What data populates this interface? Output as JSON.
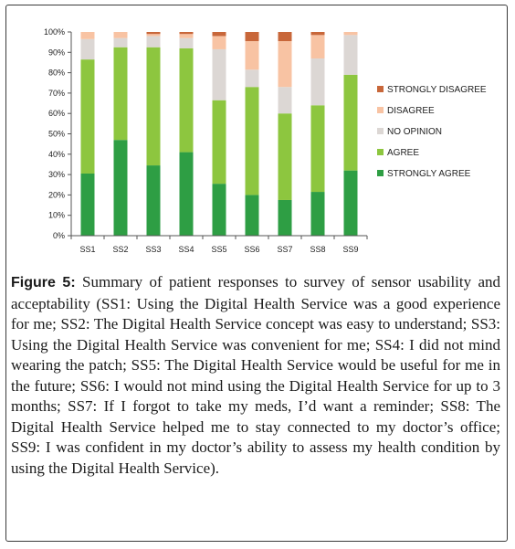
{
  "chart_data": {
    "type": "bar",
    "stacked": true,
    "percent": true,
    "categories": [
      "SS1",
      "SS2",
      "SS3",
      "SS4",
      "SS5",
      "SS6",
      "SS7",
      "SS8",
      "SS9"
    ],
    "y_ticks": [
      "0%",
      "10%",
      "20%",
      "30%",
      "40%",
      "50%",
      "60%",
      "70%",
      "80%",
      "90%",
      "100%"
    ],
    "ylim": [
      0,
      100
    ],
    "legend_position": "right",
    "series": [
      {
        "name": "STRONGLY AGREE",
        "color": "#2e9e44",
        "values": [
          30.5,
          47,
          34.5,
          41,
          25.5,
          20,
          17.5,
          21.5,
          32
        ]
      },
      {
        "name": "AGREE",
        "color": "#8dc63f",
        "values": [
          56,
          45.5,
          58,
          51,
          41,
          53,
          42.5,
          42.5,
          47
        ]
      },
      {
        "name": "NO OPINION",
        "color": "#dcd7d4",
        "values": [
          10,
          4.5,
          5.5,
          5,
          25,
          8.5,
          13,
          23,
          19.5
        ]
      },
      {
        "name": "DISAGREE",
        "color": "#f8c3a3",
        "values": [
          3.5,
          3,
          1,
          2,
          6.5,
          14,
          22.5,
          11.5,
          1.5
        ]
      },
      {
        "name": "STRONGLY DISAGREE",
        "color": "#c8673a",
        "values": [
          0,
          0,
          1,
          1,
          2,
          4.5,
          4.5,
          1.5,
          0
        ]
      }
    ]
  },
  "caption": {
    "label": "Figure 5:",
    "text": " Summary of patient responses to survey of sensor usability and acceptability (SS1: Using the Digital Health Service was a good experience for me; SS2: The Digital Health Service concept was easy to understand; SS3: Using the Digital Health Service was convenient for me; SS4: I did not mind wearing the patch; SS5: The Digital Health Service would be useful for me in the future; SS6: I would not mind using the Digital Health Service for up to 3 months; SS7: If I forgot to take my meds, I’d want a reminder; SS8: The Digital Health Service helped me to stay connected to my doctor’s office; SS9: I was confident in my doctor’s ability to assess my health condition by using the Digital Health Service)."
  }
}
